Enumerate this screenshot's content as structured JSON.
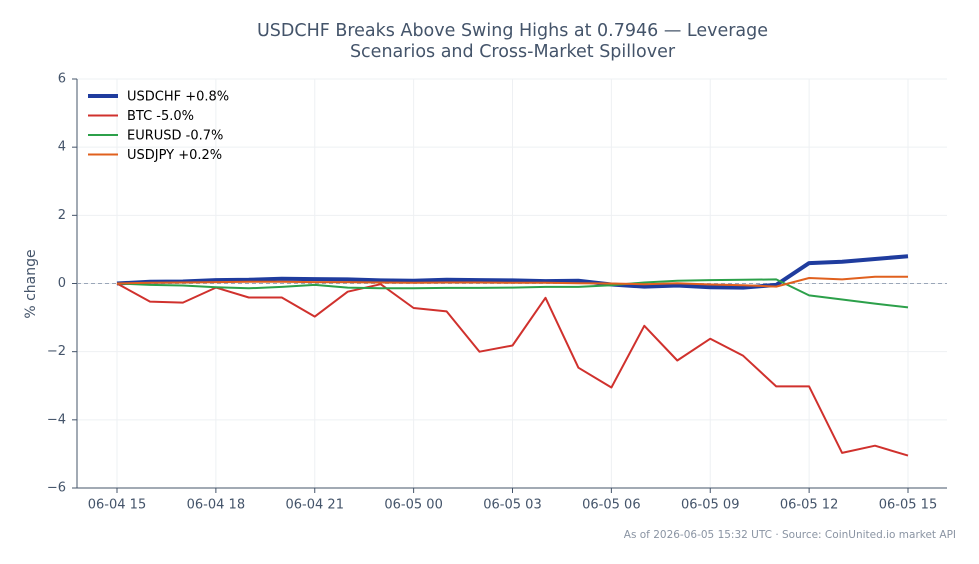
{
  "chart_data": {
    "type": "line",
    "title": "USDCHF Breaks Above Swing Highs at 0.7946 — Leverage Scenarios and Cross-Market Spillover",
    "y_label": "% change",
    "source": "As of 2026-06-05 15:32 UTC · Source: CoinUnited.io market API",
    "categories": [
      "06-04 15",
      null,
      null,
      "06-04 18",
      null,
      null,
      "06-04 21",
      null,
      null,
      "06-05 00",
      null,
      null,
      "06-05 03",
      null,
      null,
      "06-05 06",
      null,
      null,
      "06-05 09",
      null,
      null,
      "06-05 12",
      null,
      null,
      "06-05 15"
    ],
    "series": [
      {
        "name": "USDCHF +0.8%",
        "color": "#1f3c9e",
        "width": 4,
        "values": [
          0,
          0.05,
          0.06,
          0.1,
          0.11,
          0.14,
          0.13,
          0.12,
          0.09,
          0.08,
          0.11,
          0.1,
          0.09,
          0.07,
          0.08,
          -0.03,
          -0.09,
          -0.06,
          -0.11,
          -0.12,
          -0.04,
          0.6,
          0.64,
          0.72,
          0.8
        ]
      },
      {
        "name": "BTC -5.0%",
        "color": "#d0312d",
        "width": 2,
        "values": [
          0,
          -0.53,
          -0.56,
          -0.12,
          -0.41,
          -0.41,
          -0.97,
          -0.24,
          -0.02,
          -0.72,
          -0.82,
          -2.0,
          -1.82,
          -0.42,
          -2.47,
          -3.05,
          -1.24,
          -2.26,
          -1.62,
          -2.12,
          -3.02,
          -3.02,
          -4.97,
          -4.76,
          -5.05
        ]
      },
      {
        "name": "EURUSD -0.7%",
        "color": "#2ca04a",
        "width": 2,
        "values": [
          0,
          -0.04,
          -0.06,
          -0.11,
          -0.14,
          -0.1,
          -0.04,
          -0.12,
          -0.14,
          -0.14,
          -0.13,
          -0.13,
          -0.12,
          -0.1,
          -0.1,
          -0.05,
          0.03,
          0.08,
          0.1,
          0.11,
          0.12,
          -0.35,
          -0.47,
          -0.59,
          -0.7
        ]
      },
      {
        "name": "USDJPY +0.2%",
        "color": "#e0601e",
        "width": 2,
        "values": [
          0,
          0.02,
          0.03,
          0.04,
          0.05,
          0.05,
          0.04,
          0.04,
          0.03,
          0.02,
          0.03,
          0.03,
          0.02,
          0.02,
          0.01,
          0.0,
          -0.02,
          0.01,
          -0.03,
          -0.05,
          -0.09,
          0.16,
          0.12,
          0.2,
          0.2
        ]
      }
    ],
    "ylim": [
      -6,
      6
    ],
    "yticks": [
      {
        "value": -6,
        "label": "−6"
      },
      {
        "value": -4,
        "label": "−4"
      },
      {
        "value": -2,
        "label": "−2"
      },
      0,
      2,
      4,
      6
    ],
    "hline": 0,
    "grid": true,
    "legend": "upper left"
  }
}
